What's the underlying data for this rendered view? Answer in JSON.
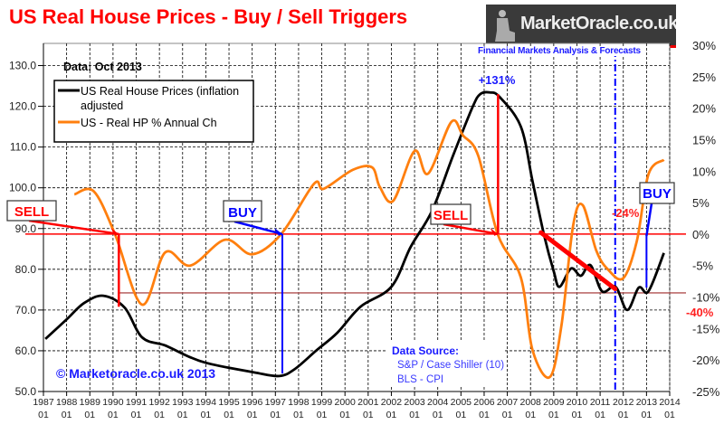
{
  "chart_data": {
    "type": "line",
    "title": "US Real House Prices - Buy / Sell Triggers",
    "subtitle": "Data: Oct 2013",
    "x_ticks": [
      "1987",
      "1988",
      "1989",
      "1990",
      "1991",
      "1992",
      "1993",
      "1994",
      "1995",
      "1996",
      "1997",
      "1998",
      "1999",
      "2000",
      "2001",
      "2002",
      "2003",
      "2004",
      "2005",
      "2006",
      "2007",
      "2008",
      "2009",
      "2010",
      "2011",
      "2012",
      "2013",
      "2014"
    ],
    "x_tick_sub": "01",
    "xlim": [
      "1987-01",
      "2014-01"
    ],
    "y_left": {
      "ticks": [
        "50.0",
        "60.0",
        "70.0",
        "80.0",
        "90.0",
        "100.0",
        "110.0",
        "120.0",
        "130.0"
      ],
      "ylim": [
        50,
        135
      ]
    },
    "y_right": {
      "ticks": [
        "-25%",
        "-20%",
        "-15%",
        "-10%",
        "-5%",
        "0%",
        "5%",
        "10%",
        "15%",
        "20%",
        "25%",
        "30%"
      ],
      "ylim": [
        -25,
        30
      ]
    },
    "grid": true,
    "legend_placement": "top-left",
    "series": [
      {
        "name": "US Real House Prices (inflation adjusted)",
        "axis": "left",
        "color": "#000000",
        "x": [
          "1987-02",
          "1988-01",
          "1988-10",
          "1989-08",
          "1990-07",
          "1991-04",
          "1992-04",
          "1993-05",
          "1994-04",
          "1996-02",
          "1997-03",
          "1997-11",
          "1998-10",
          "1999-09",
          "2000-09",
          "2002-01",
          "2002-11",
          "2003-10",
          "2004-09",
          "2005-07",
          "2005-11",
          "2006-04",
          "2006-09",
          "2007-08",
          "2008-02",
          "2008-08",
          "2009-01",
          "2009-04",
          "2009-10",
          "2010-03",
          "2010-08",
          "2011-02",
          "2011-09",
          "2012-03",
          "2012-09",
          "2013-02",
          "2013-10"
        ],
        "values": [
          62.9,
          67.7,
          71.7,
          73.5,
          70.6,
          63.3,
          61.3,
          58.4,
          56.7,
          54.7,
          53.8,
          55.5,
          60.0,
          64.4,
          70.8,
          75.7,
          85.5,
          94.3,
          108.0,
          119.8,
          123.0,
          123.4,
          122.3,
          115.0,
          101.7,
          88.4,
          79.5,
          75.7,
          80.2,
          78.4,
          81.0,
          74.6,
          75.7,
          70.0,
          75.5,
          74.6,
          84.0
        ]
      },
      {
        "name": "US - Real HP % Annual Ch",
        "axis": "right",
        "color": "#ff7f0e",
        "x": [
          "1988-05",
          "1989-03",
          "1990-02",
          "1991-04",
          "1992-04",
          "1993-05",
          "1994-11",
          "1996-01",
          "1997-04",
          "1998-09",
          "1999-02",
          "2000-05",
          "2001-03",
          "2001-07",
          "2002-02",
          "2003-01",
          "2003-08",
          "2004-08",
          "2005-02",
          "2005-10",
          "2006-08",
          "2007-08",
          "2008-02",
          "2008-11",
          "2009-05",
          "2009-11",
          "2010-04",
          "2010-11",
          "2011-05",
          "2012-01",
          "2012-08",
          "2013-02",
          "2013-10"
        ],
        "values": [
          6.3,
          6.8,
          0.0,
          -11.2,
          -2.9,
          -5.0,
          -0.9,
          -3.2,
          0.0,
          8.0,
          7.2,
          10.2,
          10.6,
          7.5,
          5.3,
          13.2,
          9.6,
          17.8,
          15.7,
          12.4,
          0.0,
          -6.9,
          -18.4,
          -22.7,
          -14.5,
          1.3,
          4.6,
          -2.6,
          -5.6,
          -7.0,
          -1.1,
          9.5,
          11.8
        ]
      }
    ],
    "annotations": {
      "sell": "SELL",
      "buy": "BUY",
      "peak_gain": "+131%",
      "decline": "-24%",
      "drawdown": "-40%",
      "copyright": "© Marketoracle.co.uk  2013",
      "source_title": "Data Source:",
      "source_lines": [
        "S&P / Case Shiller (10)",
        "BLS - CPI"
      ]
    },
    "colors": {
      "title": "#ff0000",
      "sell": "#ff0000",
      "buy": "#0000ff",
      "drawdown_line": "#b05050"
    }
  },
  "logo": {
    "text": "MarketOracle.co.uk",
    "tagline": "Financial Markets Analysis & Forecasts"
  }
}
